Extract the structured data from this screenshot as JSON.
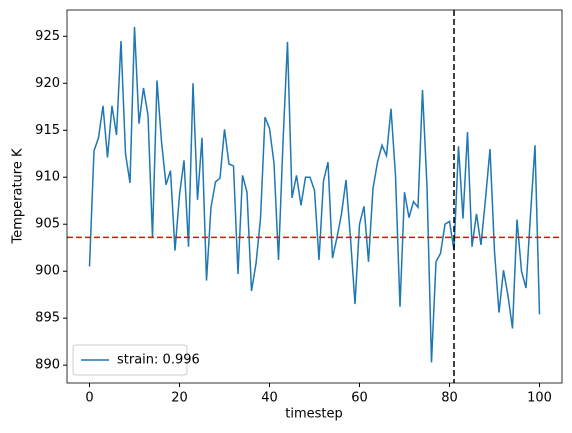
{
  "chart_data": {
    "type": "line",
    "xlabel": "timestep",
    "ylabel": "Temperature K",
    "x": [
      0,
      1,
      2,
      3,
      4,
      5,
      6,
      7,
      8,
      9,
      10,
      11,
      12,
      13,
      14,
      15,
      16,
      17,
      18,
      19,
      20,
      21,
      22,
      23,
      24,
      25,
      26,
      27,
      28,
      29,
      30,
      31,
      32,
      33,
      34,
      35,
      36,
      37,
      38,
      39,
      40,
      41,
      42,
      43,
      44,
      45,
      46,
      47,
      48,
      49,
      50,
      51,
      52,
      53,
      54,
      55,
      56,
      57,
      58,
      59,
      60,
      61,
      62,
      63,
      64,
      65,
      66,
      67,
      68,
      69,
      70,
      71,
      72,
      73,
      74,
      75,
      76,
      77,
      78,
      79,
      80,
      81,
      82,
      83,
      84,
      85,
      86,
      87,
      88,
      89,
      90,
      91,
      92,
      93,
      94,
      95,
      96,
      97,
      98,
      99,
      100
    ],
    "series": [
      {
        "name": "strain: 0.996",
        "color": "#1f77b4",
        "values": [
          900.5,
          912.8,
          914.2,
          917.6,
          912.1,
          917.6,
          914.5,
          924.5,
          912.5,
          909.4,
          926.0,
          915.7,
          919.5,
          916.6,
          903.6,
          920.3,
          913.8,
          909.2,
          910.7,
          902.2,
          908.1,
          911.8,
          902.6,
          920.0,
          907.6,
          914.2,
          899.0,
          906.8,
          909.5,
          909.9,
          915.1,
          911.4,
          911.2,
          899.7,
          910.2,
          908.4,
          897.9,
          900.8,
          905.6,
          916.4,
          915.2,
          911.5,
          901.2,
          913.7,
          924.4,
          907.8,
          910.2,
          907.0,
          910.0,
          910.0,
          908.6,
          901.2,
          909.6,
          911.6,
          901.4,
          903.6,
          906.1,
          909.7,
          903.5,
          896.5,
          905.0,
          906.9,
          901.0,
          908.8,
          911.6,
          913.4,
          912.3,
          917.3,
          910.2,
          896.2,
          908.4,
          905.7,
          907.4,
          906.8,
          919.3,
          909.0,
          890.3,
          901.0,
          901.9,
          905.0,
          905.3,
          902.2,
          913.3,
          905.6,
          914.8,
          902.6,
          906.1,
          902.8,
          907.7,
          913.0,
          902.1,
          895.6,
          900.1,
          897.4,
          893.9,
          905.5,
          900.0,
          898.2,
          906.0,
          913.4,
          895.4
        ]
      }
    ],
    "hline": {
      "value": 903.6,
      "color": "#ff0000"
    },
    "vline": {
      "value": 81,
      "color": "#000000"
    },
    "xlim": [
      -5,
      105
    ],
    "ylim": [
      888.1,
      927.8
    ],
    "xticks": [
      0,
      20,
      40,
      60,
      80,
      100
    ],
    "yticks": [
      890,
      895,
      900,
      905,
      910,
      915,
      920,
      925
    ],
    "legend": "lower left"
  }
}
